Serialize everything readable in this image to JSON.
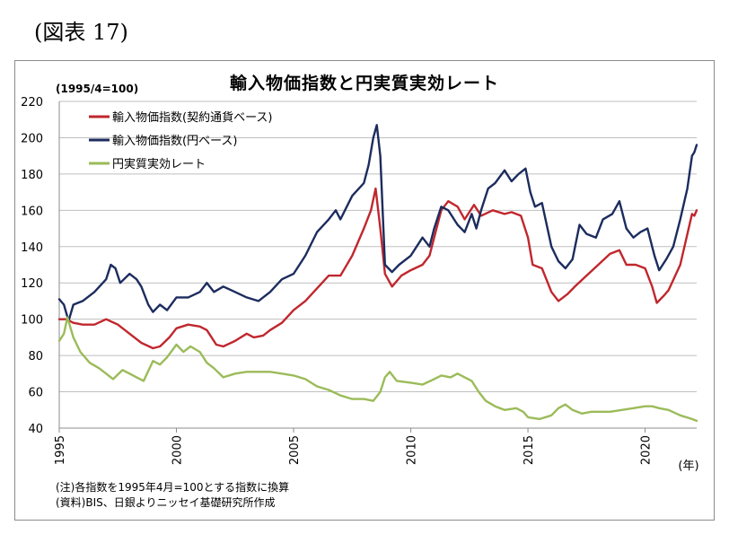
{
  "figure_label": "(図表 17)",
  "notes": {
    "note": "(注)各指数を1995年4月=100とする指数に換算",
    "source": "(資料)BIS、日銀よりニッセイ基礎研究所作成"
  },
  "chart_data": {
    "type": "line",
    "title": "輸入物価指数と円実質実効レート",
    "ylabel": "(1995/4=100)",
    "xlabel": "(年)",
    "ylim": [
      40,
      220
    ],
    "yticks": [
      40,
      60,
      80,
      100,
      120,
      140,
      160,
      180,
      200,
      220
    ],
    "xlim": [
      1995,
      2022.2
    ],
    "xticks": [
      1995,
      2000,
      2005,
      2010,
      2015,
      2020
    ],
    "legend_position": "top-left",
    "grid": "horizontal",
    "series": [
      {
        "name": "輸入物価指数(契約通貨ベース)",
        "color": "#c0272d",
        "points": [
          [
            1995.0,
            100
          ],
          [
            1995.3,
            100
          ],
          [
            1995.6,
            98
          ],
          [
            1996.0,
            97
          ],
          [
            1996.5,
            97
          ],
          [
            1997.0,
            100
          ],
          [
            1997.5,
            97
          ],
          [
            1998.0,
            92
          ],
          [
            1998.5,
            87
          ],
          [
            1999.0,
            84
          ],
          [
            1999.3,
            85
          ],
          [
            1999.7,
            90
          ],
          [
            2000.0,
            95
          ],
          [
            2000.5,
            97
          ],
          [
            2001.0,
            96
          ],
          [
            2001.3,
            94
          ],
          [
            2001.7,
            86
          ],
          [
            2002.0,
            85
          ],
          [
            2002.5,
            88
          ],
          [
            2003.0,
            92
          ],
          [
            2003.3,
            90
          ],
          [
            2003.7,
            91
          ],
          [
            2004.0,
            94
          ],
          [
            2004.5,
            98
          ],
          [
            2005.0,
            105
          ],
          [
            2005.5,
            110
          ],
          [
            2006.0,
            117
          ],
          [
            2006.5,
            124
          ],
          [
            2007.0,
            124
          ],
          [
            2007.5,
            135
          ],
          [
            2008.0,
            150
          ],
          [
            2008.3,
            160
          ],
          [
            2008.5,
            172
          ],
          [
            2008.7,
            150
          ],
          [
            2008.9,
            125
          ],
          [
            2009.2,
            118
          ],
          [
            2009.6,
            124
          ],
          [
            2010.0,
            127
          ],
          [
            2010.5,
            130
          ],
          [
            2010.8,
            135
          ],
          [
            2011.0,
            145
          ],
          [
            2011.3,
            160
          ],
          [
            2011.6,
            165
          ],
          [
            2012.0,
            162
          ],
          [
            2012.3,
            155
          ],
          [
            2012.7,
            163
          ],
          [
            2013.0,
            157
          ],
          [
            2013.5,
            160
          ],
          [
            2014.0,
            158
          ],
          [
            2014.3,
            159
          ],
          [
            2014.7,
            157
          ],
          [
            2015.0,
            145
          ],
          [
            2015.2,
            130
          ],
          [
            2015.6,
            128
          ],
          [
            2016.0,
            115
          ],
          [
            2016.3,
            110
          ],
          [
            2016.7,
            114
          ],
          [
            2017.0,
            118
          ],
          [
            2017.5,
            124
          ],
          [
            2018.0,
            130
          ],
          [
            2018.5,
            136
          ],
          [
            2018.9,
            138
          ],
          [
            2019.2,
            130
          ],
          [
            2019.6,
            130
          ],
          [
            2020.0,
            128
          ],
          [
            2020.3,
            118
          ],
          [
            2020.5,
            109
          ],
          [
            2020.8,
            113
          ],
          [
            2021.0,
            116
          ],
          [
            2021.5,
            130
          ],
          [
            2022.0,
            158
          ],
          [
            2022.1,
            157
          ],
          [
            2022.2,
            160
          ]
        ]
      },
      {
        "name": "輸入物価指数(円ベース)",
        "color": "#1c2c5e",
        "points": [
          [
            1995.0,
            111
          ],
          [
            1995.2,
            108
          ],
          [
            1995.4,
            99
          ],
          [
            1995.6,
            108
          ],
          [
            1996.0,
            110
          ],
          [
            1996.5,
            115
          ],
          [
            1997.0,
            122
          ],
          [
            1997.2,
            130
          ],
          [
            1997.4,
            128
          ],
          [
            1997.6,
            120
          ],
          [
            1998.0,
            125
          ],
          [
            1998.3,
            122
          ],
          [
            1998.5,
            118
          ],
          [
            1998.8,
            108
          ],
          [
            1999.0,
            104
          ],
          [
            1999.3,
            108
          ],
          [
            1999.6,
            105
          ],
          [
            2000.0,
            112
          ],
          [
            2000.5,
            112
          ],
          [
            2001.0,
            115
          ],
          [
            2001.3,
            120
          ],
          [
            2001.6,
            115
          ],
          [
            2002.0,
            118
          ],
          [
            2002.5,
            115
          ],
          [
            2003.0,
            112
          ],
          [
            2003.5,
            110
          ],
          [
            2004.0,
            115
          ],
          [
            2004.5,
            122
          ],
          [
            2005.0,
            125
          ],
          [
            2005.5,
            135
          ],
          [
            2006.0,
            148
          ],
          [
            2006.5,
            155
          ],
          [
            2006.8,
            160
          ],
          [
            2007.0,
            155
          ],
          [
            2007.5,
            168
          ],
          [
            2008.0,
            175
          ],
          [
            2008.2,
            185
          ],
          [
            2008.4,
            200
          ],
          [
            2008.55,
            207
          ],
          [
            2008.7,
            190
          ],
          [
            2008.9,
            130
          ],
          [
            2009.2,
            126
          ],
          [
            2009.5,
            130
          ],
          [
            2010.0,
            135
          ],
          [
            2010.5,
            145
          ],
          [
            2010.8,
            140
          ],
          [
            2011.0,
            150
          ],
          [
            2011.3,
            162
          ],
          [
            2011.6,
            160
          ],
          [
            2012.0,
            152
          ],
          [
            2012.3,
            148
          ],
          [
            2012.6,
            158
          ],
          [
            2012.8,
            150
          ],
          [
            2013.0,
            160
          ],
          [
            2013.3,
            172
          ],
          [
            2013.6,
            175
          ],
          [
            2014.0,
            182
          ],
          [
            2014.3,
            176
          ],
          [
            2014.6,
            180
          ],
          [
            2014.9,
            183
          ],
          [
            2015.1,
            170
          ],
          [
            2015.3,
            162
          ],
          [
            2015.6,
            164
          ],
          [
            2016.0,
            140
          ],
          [
            2016.3,
            132
          ],
          [
            2016.6,
            128
          ],
          [
            2016.9,
            133
          ],
          [
            2017.2,
            152
          ],
          [
            2017.5,
            147
          ],
          [
            2017.9,
            145
          ],
          [
            2018.2,
            155
          ],
          [
            2018.6,
            158
          ],
          [
            2018.9,
            165
          ],
          [
            2019.2,
            150
          ],
          [
            2019.5,
            145
          ],
          [
            2019.8,
            148
          ],
          [
            2020.1,
            150
          ],
          [
            2020.4,
            135
          ],
          [
            2020.6,
            127
          ],
          [
            2020.9,
            133
          ],
          [
            2021.2,
            140
          ],
          [
            2021.5,
            155
          ],
          [
            2021.8,
            172
          ],
          [
            2022.0,
            190
          ],
          [
            2022.1,
            192
          ],
          [
            2022.2,
            196
          ]
        ]
      },
      {
        "name": "円実質実効レート",
        "color": "#9bbb59",
        "points": [
          [
            1995.0,
            88
          ],
          [
            1995.2,
            92
          ],
          [
            1995.35,
            101
          ],
          [
            1995.6,
            90
          ],
          [
            1995.9,
            82
          ],
          [
            1996.3,
            76
          ],
          [
            1996.7,
            73
          ],
          [
            1997.0,
            70
          ],
          [
            1997.3,
            67
          ],
          [
            1997.7,
            72
          ],
          [
            1998.0,
            70
          ],
          [
            1998.3,
            68
          ],
          [
            1998.6,
            66
          ],
          [
            1999.0,
            77
          ],
          [
            1999.3,
            75
          ],
          [
            1999.6,
            79
          ],
          [
            2000.0,
            86
          ],
          [
            2000.3,
            82
          ],
          [
            2000.6,
            85
          ],
          [
            2001.0,
            82
          ],
          [
            2001.3,
            76
          ],
          [
            2001.6,
            73
          ],
          [
            2002.0,
            68
          ],
          [
            2002.5,
            70
          ],
          [
            2003.0,
            71
          ],
          [
            2003.5,
            71
          ],
          [
            2004.0,
            71
          ],
          [
            2004.5,
            70
          ],
          [
            2005.0,
            69
          ],
          [
            2005.5,
            67
          ],
          [
            2006.0,
            63
          ],
          [
            2006.5,
            61
          ],
          [
            2007.0,
            58
          ],
          [
            2007.5,
            56
          ],
          [
            2008.0,
            56
          ],
          [
            2008.4,
            55
          ],
          [
            2008.7,
            60
          ],
          [
            2008.9,
            68
          ],
          [
            2009.1,
            71
          ],
          [
            2009.4,
            66
          ],
          [
            2010.0,
            65
          ],
          [
            2010.5,
            64
          ],
          [
            2011.0,
            67
          ],
          [
            2011.3,
            69
          ],
          [
            2011.7,
            68
          ],
          [
            2012.0,
            70
          ],
          [
            2012.3,
            68
          ],
          [
            2012.6,
            66
          ],
          [
            2012.9,
            60
          ],
          [
            2013.2,
            55
          ],
          [
            2013.6,
            52
          ],
          [
            2014.0,
            50
          ],
          [
            2014.5,
            51
          ],
          [
            2014.8,
            49
          ],
          [
            2015.0,
            46
          ],
          [
            2015.5,
            45
          ],
          [
            2016.0,
            47
          ],
          [
            2016.3,
            51
          ],
          [
            2016.6,
            53
          ],
          [
            2016.9,
            50
          ],
          [
            2017.3,
            48
          ],
          [
            2017.7,
            49
          ],
          [
            2018.0,
            49
          ],
          [
            2018.5,
            49
          ],
          [
            2019.0,
            50
          ],
          [
            2019.5,
            51
          ],
          [
            2020.0,
            52
          ],
          [
            2020.3,
            52
          ],
          [
            2020.6,
            51
          ],
          [
            2021.0,
            50
          ],
          [
            2021.5,
            47
          ],
          [
            2022.0,
            45
          ],
          [
            2022.2,
            44
          ]
        ]
      }
    ]
  }
}
